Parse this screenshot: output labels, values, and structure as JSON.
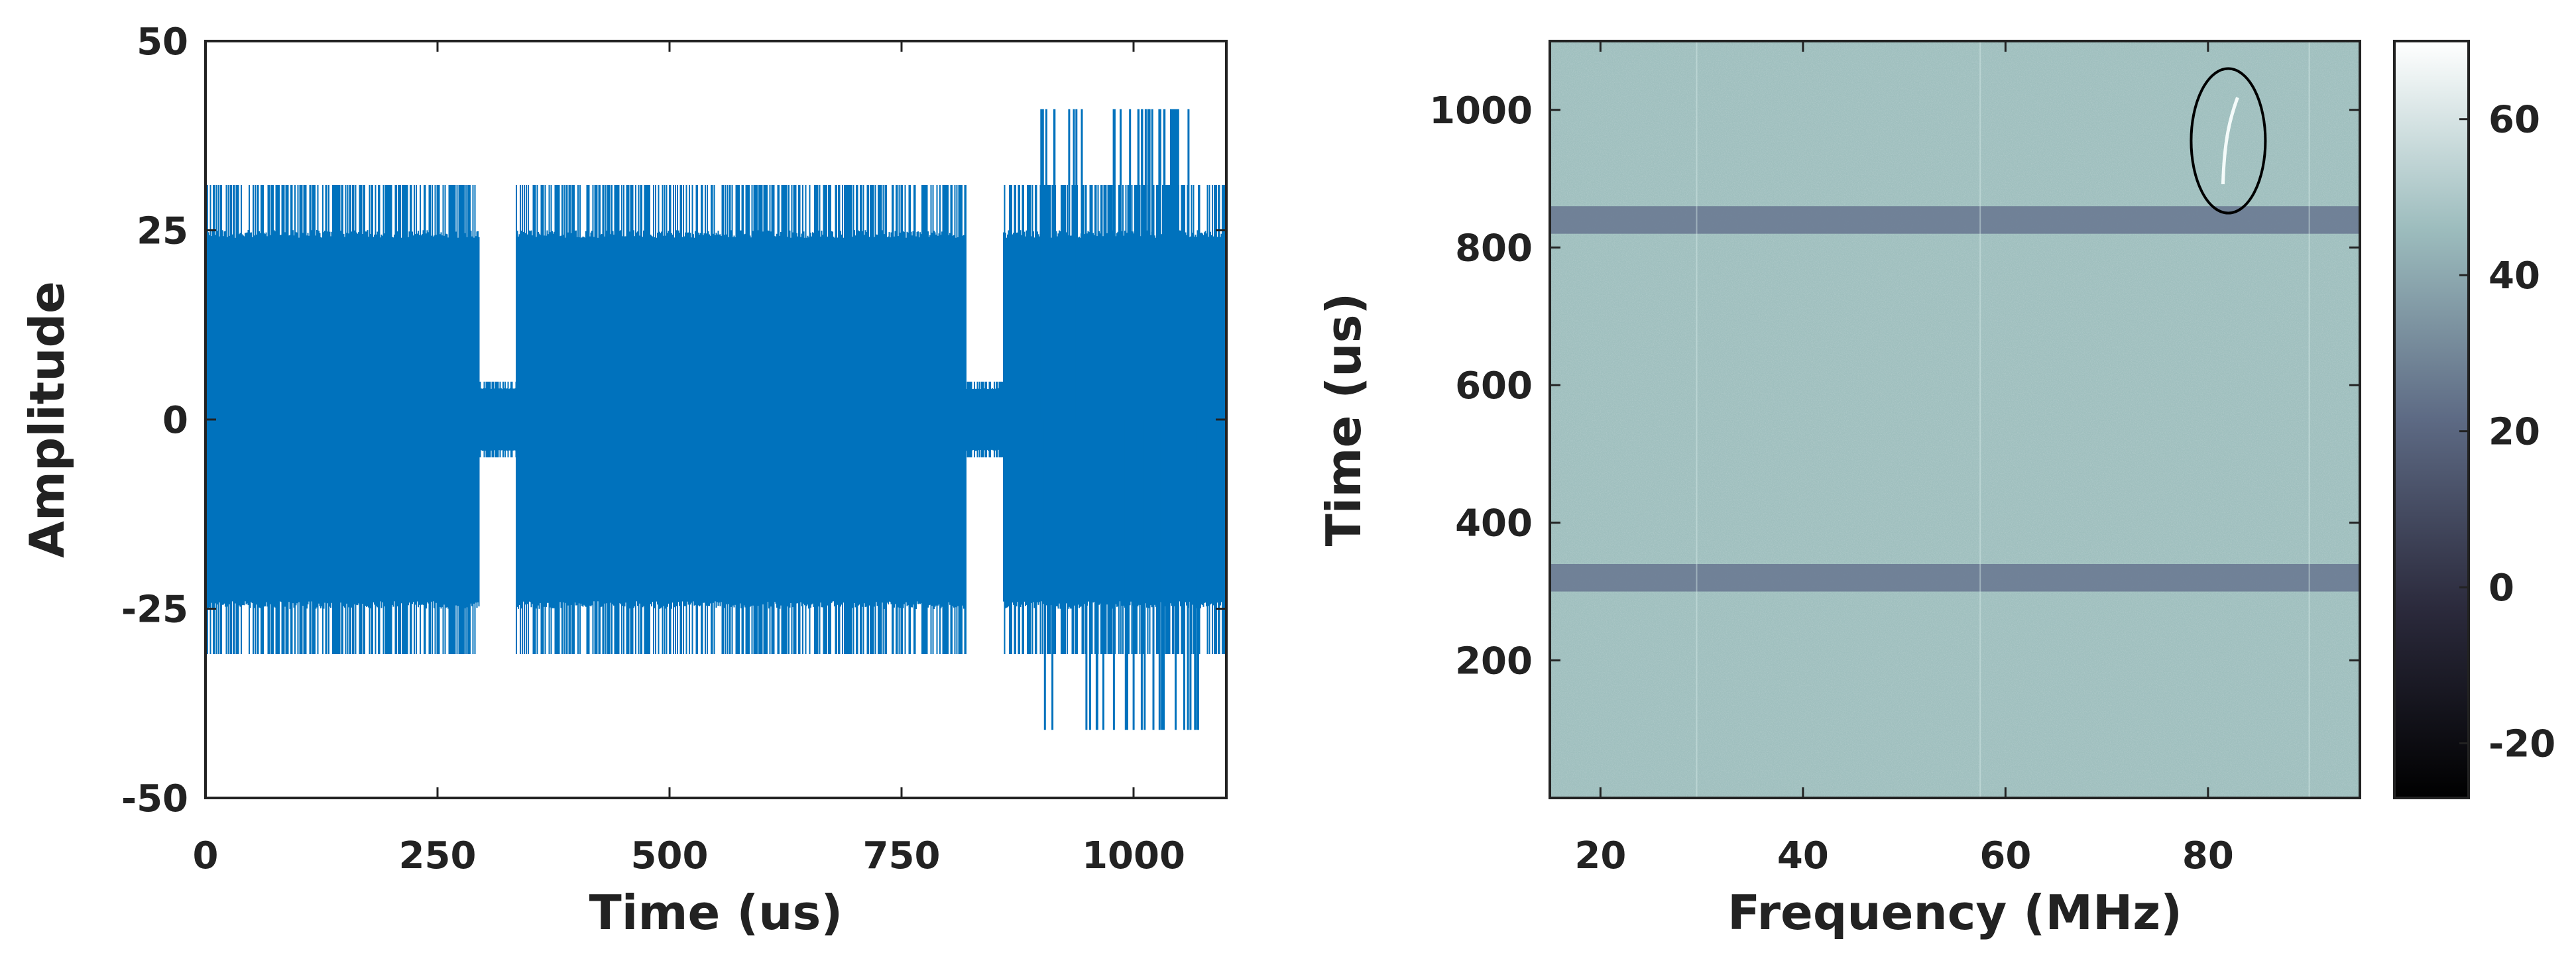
{
  "chart_data": [
    {
      "type": "line",
      "xlabel": "Time (us)",
      "ylabel": "Amplitude",
      "xlim": [
        0,
        1100
      ],
      "ylim": [
        -50,
        50
      ],
      "x_ticks": [
        "0",
        "250",
        "500",
        "750",
        "1000"
      ],
      "y_ticks": [
        "50",
        "25",
        "0",
        "-25",
        "-50"
      ],
      "color": "#0072BD",
      "segments": [
        {
          "x": [
            0,
            295
          ],
          "envelope": [
            -31,
            31
          ],
          "typical": [
            -24,
            24
          ]
        },
        {
          "x": [
            295,
            335
          ],
          "envelope": [
            -5,
            5
          ],
          "typical": [
            -4,
            4
          ]
        },
        {
          "x": [
            335,
            820
          ],
          "envelope": [
            -31,
            31
          ],
          "typical": [
            -24,
            24
          ]
        },
        {
          "x": [
            820,
            860
          ],
          "envelope": [
            -5,
            5
          ],
          "typical": [
            -4,
            4
          ]
        },
        {
          "x": [
            860,
            1100
          ],
          "envelope": [
            -31,
            31
          ],
          "typical": [
            -24,
            24
          ]
        }
      ],
      "spikes": {
        "x": [
          900,
          1070
        ],
        "envelope": [
          -41,
          41
        ]
      }
    },
    {
      "type": "heatmap",
      "xlabel": "Frequency (MHz)",
      "ylabel": "Time (us)",
      "xlim": [
        15,
        95
      ],
      "ylim": [
        0,
        1100
      ],
      "x_ticks": [
        "20",
        "40",
        "60",
        "80"
      ],
      "y_ticks": [
        "1000",
        "800",
        "600",
        "400",
        "200"
      ],
      "colorbar": {
        "range": [
          -27,
          70
        ],
        "ticks": [
          "60",
          "40",
          "20",
          "0",
          "-20"
        ]
      },
      "background_level": 47,
      "bands": [
        {
          "time": [
            820,
            860
          ],
          "level": 27
        },
        {
          "time": [
            300,
            340
          ],
          "level": 27
        }
      ],
      "highlight": {
        "frequency": 82,
        "time": [
          880,
          1030
        ],
        "shape": "ellipse"
      }
    }
  ]
}
